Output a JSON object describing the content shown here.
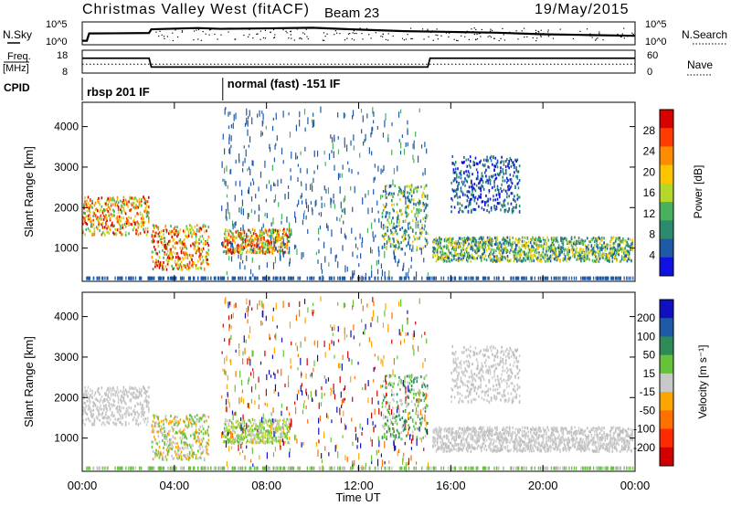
{
  "chart_data": {
    "type": "heatmap",
    "title": "Christmas Valley West (fitACF)",
    "beam_label": "Beam 23",
    "date": "19/May/2015",
    "xlabel": "Time UT",
    "x_ticks": [
      "00:00",
      "04:00",
      "08:00",
      "12:00",
      "16:00",
      "20:00",
      "00:00"
    ],
    "x_range_hours": [
      0,
      24
    ],
    "status_panels": {
      "noise": {
        "left_label": "N.Sky",
        "right_label": "N.Search",
        "left_ticks": [
          "10^5",
          "10^0"
        ],
        "right_ticks": [
          "10^5",
          "10^0"
        ],
        "sky_trace": [
          [
            0,
            0.08
          ],
          [
            0.2,
            0.08
          ],
          [
            0.3,
            0.55
          ],
          [
            2.9,
            0.58
          ],
          [
            3.0,
            0.82
          ],
          [
            5,
            0.9
          ],
          [
            6,
            0.85
          ],
          [
            8,
            0.88
          ],
          [
            10,
            0.92
          ],
          [
            12,
            0.8
          ],
          [
            14,
            0.7
          ],
          [
            16,
            0.65
          ],
          [
            18,
            0.6
          ],
          [
            20,
            0.5
          ],
          [
            22,
            0.45
          ],
          [
            24,
            0.4
          ]
        ]
      },
      "frequency": {
        "left_label_1": "Freq.",
        "left_label_2": "[MHz]",
        "right_label": "Nave",
        "left_ticks": [
          "18",
          "8"
        ],
        "right_ticks": [
          "60",
          "0"
        ],
        "freq_trace": [
          [
            0,
            14.8
          ],
          [
            2.9,
            14.8
          ],
          [
            3.0,
            10.2
          ],
          [
            15.0,
            10.2
          ],
          [
            15.1,
            14.8
          ],
          [
            24,
            14.8
          ]
        ],
        "nave_dotted_level": 22
      },
      "cpid": {
        "label": "CPID",
        "segments": [
          {
            "start_hour": 0,
            "end_hour": 6.1,
            "text": "rbsp 201 IF"
          },
          {
            "start_hour": 6.1,
            "end_hour": 24,
            "text": "normal (fast) -151 IF"
          }
        ]
      }
    },
    "panels": [
      {
        "name": "power",
        "ylabel": "Slant Range [km]",
        "ylim": [
          180,
          4600
        ],
        "y_ticks": [
          1000,
          2000,
          3000,
          4000
        ],
        "colorbar_label": "Power [dB]",
        "colorbar_ticks": [
          "28",
          "24",
          "20",
          "16",
          "12",
          "8",
          "4"
        ],
        "colorbar_colors": [
          "#d90000",
          "#ff3b00",
          "#ff8c00",
          "#ffc400",
          "#b4d82a",
          "#49b05d",
          "#2d8b6d",
          "#1e5aa8",
          "#1010e0"
        ]
      },
      {
        "name": "velocity",
        "ylabel": "Slant Range [km]",
        "ylim": [
          180,
          4600
        ],
        "y_ticks": [
          1000,
          2000,
          3000,
          4000
        ],
        "colorbar_label": "Velocity [m s⁻¹]",
        "colorbar_ticks": [
          "200",
          "100",
          "50",
          "15",
          "-15",
          "-50",
          "-100",
          "-200"
        ],
        "colorbar_colors": [
          "#1010c0",
          "#1e5aa8",
          "#2e8b57",
          "#66c23a",
          "#c8c8c8",
          "#ffa500",
          "#ff7000",
          "#ff2a00",
          "#d00000"
        ]
      }
    ],
    "echo_bands": [
      {
        "start_hour": 0.0,
        "end_hour": 2.9,
        "range_km": [
          1350,
          2300
        ],
        "power_class": "high",
        "velocity_class": "zero"
      },
      {
        "start_hour": 3.0,
        "end_hour": 5.5,
        "range_km": [
          500,
          1600
        ],
        "power_class": "high",
        "velocity_class": "mixed-away"
      },
      {
        "start_hour": 6.1,
        "end_hour": 9.0,
        "range_km": [
          900,
          1500
        ],
        "power_class": "high",
        "velocity_class": "toward-green"
      },
      {
        "start_hour": 13.0,
        "end_hour": 15.0,
        "range_km": [
          1000,
          2600
        ],
        "power_class": "medium",
        "velocity_class": "green"
      },
      {
        "start_hour": 15.2,
        "end_hour": 23.9,
        "range_km": [
          700,
          1300
        ],
        "power_class": "medium",
        "velocity_class": "zero"
      },
      {
        "start_hour": 16.0,
        "end_hour": 19.0,
        "range_km": [
          1900,
          3300
        ],
        "power_class": "low",
        "velocity_class": "zero"
      }
    ]
  }
}
